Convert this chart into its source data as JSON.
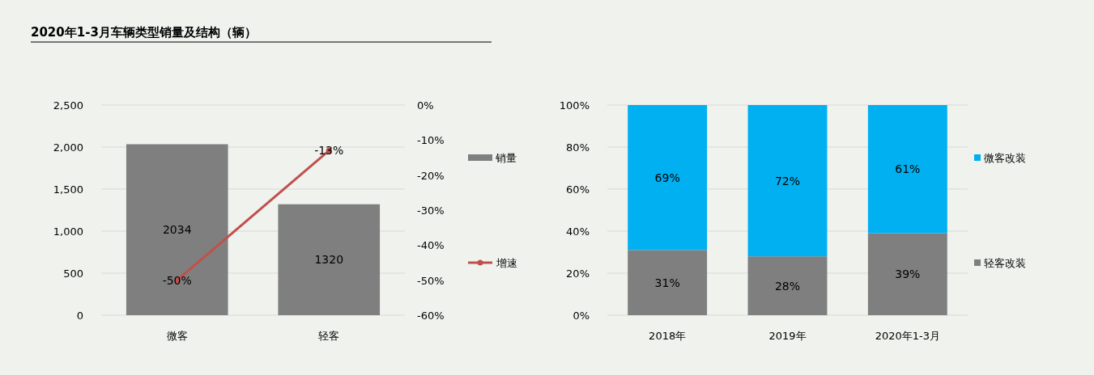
{
  "chart_data": [
    {
      "type": "bar",
      "title": "2020年1-3月车辆类型销量及结构（辆）",
      "categories": [
        "微客",
        "轻客"
      ],
      "series": [
        {
          "name": "销量",
          "type": "bar",
          "color": "#7f7f7f",
          "values": [
            2034,
            1320
          ],
          "value_labels": [
            "2034",
            "1320"
          ]
        },
        {
          "name": "增速",
          "type": "line",
          "axis": "y2",
          "color": "#c0504d",
          "marker": "circle",
          "values": [
            -50,
            -13
          ],
          "value_labels": [
            "-50%",
            "-13%"
          ]
        }
      ],
      "ylim": [
        0,
        2500
      ],
      "yticks": [
        0,
        500,
        {
          "value": 1000,
          "label": "1,000"
        },
        {
          "value": 1500,
          "label": "1,500"
        },
        {
          "value": 2000,
          "label": "2,000"
        },
        {
          "value": 2500,
          "label": "2,500"
        }
      ],
      "y2lim": [
        -60,
        0
      ],
      "y2ticks": [
        {
          "value": -60,
          "label": "-60%"
        },
        {
          "value": -50,
          "label": "-50%"
        },
        {
          "value": -40,
          "label": "-40%"
        },
        {
          "value": -30,
          "label": "-30%"
        },
        {
          "value": -20,
          "label": "-20%"
        },
        {
          "value": -10,
          "label": "-10%"
        },
        {
          "value": 0,
          "label": "0%"
        }
      ],
      "grid": "y",
      "legend": "right"
    },
    {
      "type": "bar",
      "stacked": true,
      "categories": [
        "2018年",
        "2019年",
        "2020年1-3月"
      ],
      "series": [
        {
          "name": "轻客改装",
          "color": "#7f7f7f",
          "values": [
            31,
            28,
            39
          ],
          "value_labels": [
            "31%",
            "28%",
            "39%"
          ]
        },
        {
          "name": "微客改装",
          "color": "#00b0f0",
          "values": [
            69,
            72,
            61
          ],
          "value_labels": [
            "69%",
            "72%",
            "61%"
          ]
        }
      ],
      "ylim": [
        0,
        100
      ],
      "yticks": [
        {
          "value": 0,
          "label": "0%"
        },
        {
          "value": 20,
          "label": "20%"
        },
        {
          "value": 40,
          "label": "40%"
        },
        {
          "value": 60,
          "label": "60%"
        },
        {
          "value": 80,
          "label": "80%"
        },
        {
          "value": 100,
          "label": "100%"
        }
      ],
      "grid": "y",
      "legend": "right"
    }
  ]
}
